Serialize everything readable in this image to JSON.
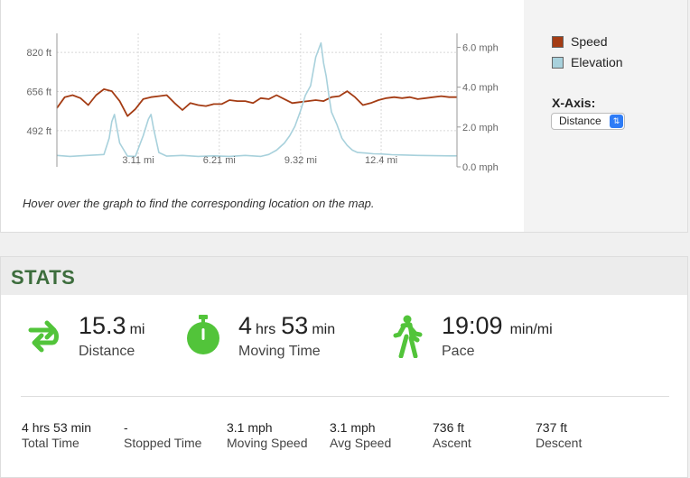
{
  "chart_data": {
    "type": "line",
    "xlabel": "",
    "x_ticks": [
      "3.11 mi",
      "6.21 mi",
      "9.32 mi",
      "12.4 mi"
    ],
    "x_tick_values": [
      3.11,
      6.21,
      9.32,
      12.4
    ],
    "xlim": [
      0,
      15.3
    ],
    "y_left_ticks": [
      "492 ft",
      "656 ft",
      "820 ft"
    ],
    "y_left_tick_values": [
      492,
      656,
      820
    ],
    "y_left_lim": [
      340,
      900
    ],
    "y_right_ticks": [
      "0.0 mph",
      "2.0 mph",
      "4.0 mph",
      "6.0 mph"
    ],
    "y_right_tick_values": [
      0,
      2,
      4,
      6
    ],
    "y_right_lim": [
      0,
      6.7
    ],
    "grid": true,
    "legend_position": "right",
    "series": [
      {
        "name": "Speed",
        "color": "#a43c14",
        "axis": "right",
        "x": [
          0,
          0.3,
          0.6,
          0.9,
          1.2,
          1.5,
          1.8,
          2.1,
          2.4,
          2.7,
          3.0,
          3.3,
          3.6,
          3.9,
          4.2,
          4.5,
          4.8,
          5.1,
          5.4,
          5.7,
          6.0,
          6.3,
          6.6,
          6.9,
          7.2,
          7.5,
          7.8,
          8.1,
          8.4,
          8.7,
          9.0,
          9.3,
          9.6,
          9.9,
          10.2,
          10.5,
          10.8,
          11.1,
          11.4,
          11.7,
          12.0,
          12.3,
          12.6,
          12.9,
          13.2,
          13.5,
          13.8,
          14.1,
          14.4,
          14.7,
          15.0,
          15.3
        ],
        "values": [
          2.95,
          3.5,
          3.6,
          3.45,
          3.1,
          3.6,
          3.9,
          3.8,
          3.3,
          2.55,
          2.9,
          3.4,
          3.5,
          3.55,
          3.6,
          3.2,
          2.85,
          3.2,
          3.1,
          3.05,
          3.15,
          3.15,
          3.35,
          3.3,
          3.3,
          3.2,
          3.45,
          3.4,
          3.6,
          3.4,
          3.2,
          3.25,
          3.3,
          3.35,
          3.3,
          3.5,
          3.55,
          3.8,
          3.5,
          3.1,
          3.2,
          3.35,
          3.45,
          3.5,
          3.45,
          3.5,
          3.4,
          3.45,
          3.5,
          3.55,
          3.5,
          3.5
        ]
      },
      {
        "name": "Elevation",
        "color": "#a8d1dc",
        "axis": "left",
        "x": [
          0,
          0.5,
          1.0,
          1.5,
          1.8,
          2.0,
          2.1,
          2.2,
          2.4,
          2.7,
          3.0,
          3.3,
          3.5,
          3.6,
          3.7,
          3.9,
          4.2,
          4.8,
          5.4,
          6.0,
          6.6,
          7.2,
          7.8,
          8.1,
          8.4,
          8.7,
          8.9,
          9.1,
          9.3,
          9.5,
          9.7,
          9.9,
          10.1,
          10.2,
          10.3,
          10.4,
          10.5,
          10.7,
          10.9,
          11.1,
          11.3,
          11.5,
          11.8,
          12.1,
          12.4,
          12.8,
          13.2,
          13.8,
          14.4,
          15.0,
          15.3
        ],
        "values": [
          388,
          384,
          387,
          390,
          392,
          460,
          530,
          560,
          440,
          385,
          384,
          470,
          540,
          560,
          500,
          400,
          385,
          388,
          384,
          386,
          384,
          388,
          384,
          392,
          410,
          440,
          470,
          510,
          570,
          640,
          680,
          800,
          860,
          775,
          720,
          640,
          570,
          520,
          460,
          430,
          410,
          400,
          398,
          395,
          394,
          391,
          390,
          388,
          387,
          386,
          386
        ]
      }
    ]
  },
  "legend": {
    "speed_label": "Speed",
    "elevation_label": "Elevation",
    "speed_color": "#a43c14",
    "elevation_color": "#a8d1dc"
  },
  "xaxis_control": {
    "label": "X-Axis:",
    "selected": "Distance"
  },
  "hint": "Hover over the graph to find the corresponding location on the map.",
  "stats": {
    "title": "STATS",
    "accent_color": "#52c43a",
    "distance": {
      "value": "15.3",
      "unit": "mi",
      "label": "Distance",
      "icon": "route-arrows-icon"
    },
    "moving_time": {
      "hours": "4",
      "hours_unit": "hrs",
      "minutes": "53",
      "minutes_unit": "min",
      "label": "Moving Time",
      "icon": "stopwatch-icon"
    },
    "pace": {
      "value": "19:09",
      "unit": "min/mi",
      "label": "Pace",
      "icon": "walking-person-icon"
    },
    "total_time": {
      "hours": "4",
      "hours_unit": "hrs",
      "minutes": "53",
      "minutes_unit": "min",
      "label": "Total Time"
    },
    "stopped_time": {
      "value": "-",
      "label": "Stopped Time"
    },
    "moving_speed": {
      "value": "3.1",
      "unit": "mph",
      "label": "Moving Speed"
    },
    "avg_speed": {
      "value": "3.1",
      "unit": "mph",
      "label": "Avg Speed"
    },
    "ascent": {
      "value": "736",
      "unit": "ft",
      "label": "Ascent"
    },
    "descent": {
      "value": "737",
      "unit": "ft",
      "label": "Descent"
    }
  }
}
